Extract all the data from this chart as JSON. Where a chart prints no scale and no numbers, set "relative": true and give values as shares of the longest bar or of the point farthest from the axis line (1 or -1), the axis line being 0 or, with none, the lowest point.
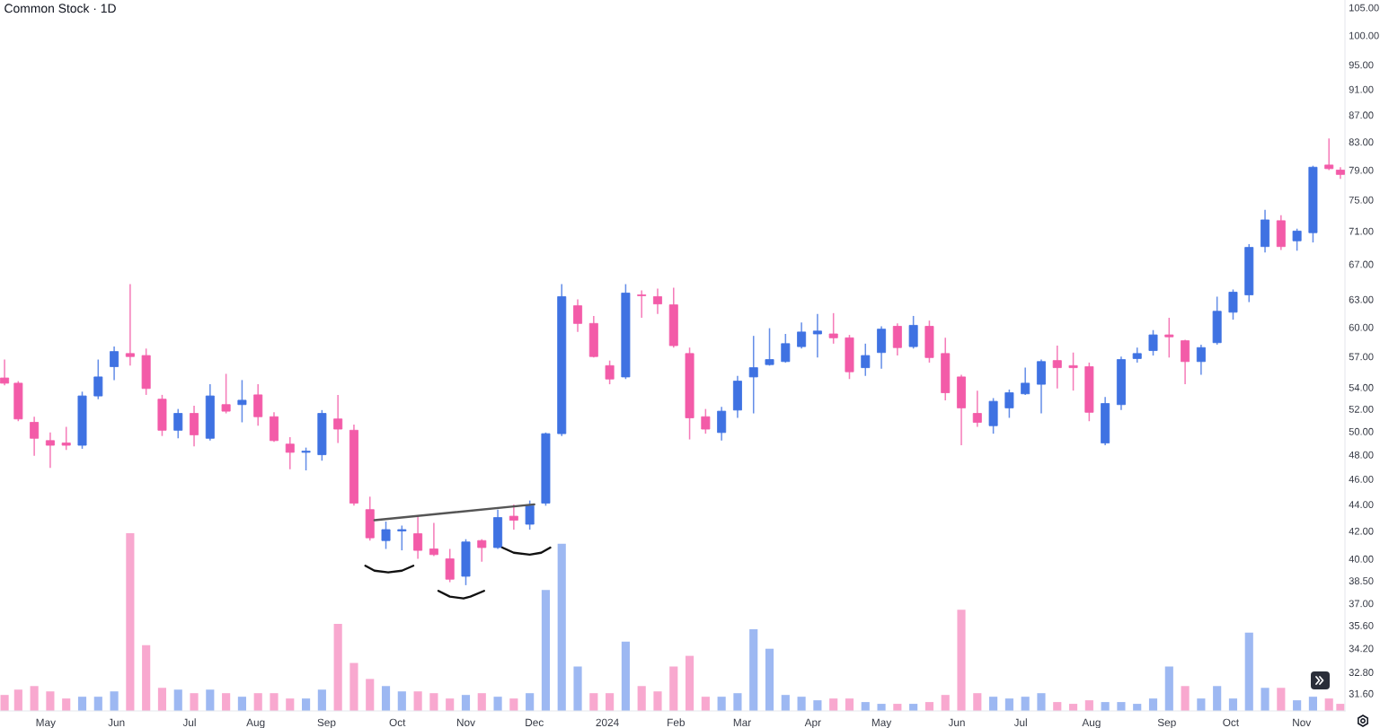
{
  "chart_data": [
    {
      "type": "candlestick",
      "title": "Common Stock · 1D",
      "log": true,
      "xlim": [
        "2023-04-11",
        "2024-11-20"
      ],
      "ylim": [
        30.65,
        106.4
      ],
      "yticks": [
        {
          "value": 31.6,
          "label": "31.60"
        },
        {
          "value": 32.8,
          "label": "32.80"
        },
        {
          "value": 34.2,
          "label": "34.20"
        },
        {
          "value": 35.6,
          "label": "35.60"
        },
        {
          "value": 37,
          "label": "37.00"
        },
        {
          "value": 38.5,
          "label": "38.50"
        },
        {
          "value": 40,
          "label": "40.00"
        },
        {
          "value": 42,
          "label": "42.00"
        },
        {
          "value": 44,
          "label": "44.00"
        },
        {
          "value": 46,
          "label": "46.00"
        },
        {
          "value": 48,
          "label": "48.00"
        },
        {
          "value": 50,
          "label": "50.00"
        },
        {
          "value": 52,
          "label": "52.00"
        },
        {
          "value": 54,
          "label": "54.00"
        },
        {
          "value": 57,
          "label": "57.00"
        },
        {
          "value": 60,
          "label": "60.00"
        },
        {
          "value": 63,
          "label": "63.00"
        },
        {
          "value": 67,
          "label": "67.00"
        },
        {
          "value": 71,
          "label": "71.00"
        },
        {
          "value": 75,
          "label": "75.00"
        },
        {
          "value": 79,
          "label": "79.00"
        },
        {
          "value": 83,
          "label": "83.00"
        },
        {
          "value": 87,
          "label": "87.00"
        },
        {
          "value": 91,
          "label": "91.00"
        },
        {
          "value": 95,
          "label": "95.00"
        },
        {
          "value": 100,
          "label": "100.00"
        },
        {
          "value": 105,
          "label": "105.00"
        }
      ],
      "x": [
        "2023-04-13",
        "2023-04-19",
        "2023-04-26",
        "2023-05-03",
        "2023-05-10",
        "2023-05-17",
        "2023-05-24",
        "2023-05-31",
        "2023-06-07",
        "2023-06-14",
        "2023-06-21",
        "2023-06-28",
        "2023-07-05",
        "2023-07-12",
        "2023-07-19",
        "2023-07-26",
        "2023-08-02",
        "2023-08-09",
        "2023-08-16",
        "2023-08-23",
        "2023-08-30",
        "2023-09-06",
        "2023-09-13",
        "2023-09-20",
        "2023-09-27",
        "2023-10-04",
        "2023-10-11",
        "2023-10-18",
        "2023-10-25",
        "2023-11-01",
        "2023-11-08",
        "2023-11-15",
        "2023-11-22",
        "2023-11-29",
        "2023-12-06",
        "2023-12-13",
        "2023-12-20",
        "2023-12-27",
        "2024-01-03",
        "2024-01-10",
        "2024-01-17",
        "2024-01-24",
        "2024-01-31",
        "2024-02-07",
        "2024-02-14",
        "2024-02-21",
        "2024-02-28",
        "2024-03-06",
        "2024-03-13",
        "2024-03-20",
        "2024-03-27",
        "2024-04-03",
        "2024-04-10",
        "2024-04-17",
        "2024-04-24",
        "2024-05-01",
        "2024-05-08",
        "2024-05-15",
        "2024-05-22",
        "2024-05-29",
        "2024-06-05",
        "2024-06-12",
        "2024-06-19",
        "2024-06-26",
        "2024-07-03",
        "2024-07-10",
        "2024-07-17",
        "2024-07-24",
        "2024-07-31",
        "2024-08-07",
        "2024-08-14",
        "2024-08-21",
        "2024-08-28",
        "2024-09-04",
        "2024-09-11",
        "2024-09-18",
        "2024-09-25",
        "2024-10-02",
        "2024-10-09",
        "2024-10-16",
        "2024-10-23",
        "2024-10-30",
        "2024-11-06",
        "2024-11-13",
        "2024-11-18"
      ],
      "ohlc": [
        [
          54.9,
          56.7,
          54.2,
          54.4
        ],
        [
          54.4,
          54.6,
          50.9,
          51.1
        ],
        [
          50.8,
          51.3,
          47.9,
          49.4
        ],
        [
          49.2,
          49.9,
          46.9,
          48.8
        ],
        [
          49.0,
          50.4,
          48.4,
          48.8
        ],
        [
          48.8,
          53.6,
          48.5,
          53.2
        ],
        [
          53.2,
          56.7,
          52.9,
          55.0
        ],
        [
          56.0,
          58.0,
          54.7,
          57.5
        ],
        [
          57.3,
          64.7,
          56.1,
          57.0
        ],
        [
          57.1,
          57.8,
          53.3,
          53.9
        ],
        [
          52.9,
          53.3,
          49.6,
          50.1
        ],
        [
          50.1,
          52.0,
          49.4,
          51.6
        ],
        [
          51.6,
          52.3,
          48.7,
          49.7
        ],
        [
          49.4,
          54.3,
          49.2,
          53.2
        ],
        [
          52.4,
          55.3,
          51.6,
          51.8
        ],
        [
          52.4,
          54.7,
          50.8,
          52.8
        ],
        [
          53.3,
          54.3,
          50.5,
          51.3
        ],
        [
          51.3,
          51.7,
          49.1,
          49.2
        ],
        [
          48.9,
          49.5,
          46.8,
          48.2
        ],
        [
          48.2,
          48.6,
          46.7,
          48.3
        ],
        [
          48.0,
          51.9,
          47.5,
          51.6
        ],
        [
          51.1,
          53.3,
          49.0,
          50.2
        ],
        [
          50.1,
          50.6,
          43.9,
          44.1
        ],
        [
          43.6,
          44.6,
          41.3,
          41.5
        ],
        [
          41.3,
          42.7,
          40.7,
          42.1
        ],
        [
          42.0,
          42.4,
          40.6,
          42.1
        ],
        [
          41.8,
          43.1,
          40.0,
          40.6
        ],
        [
          40.7,
          42.6,
          40.2,
          40.3
        ],
        [
          40.0,
          40.7,
          38.4,
          38.6
        ],
        [
          38.8,
          41.4,
          38.2,
          41.2
        ],
        [
          41.3,
          41.4,
          39.8,
          40.8
        ],
        [
          40.8,
          43.6,
          40.7,
          43.0
        ],
        [
          43.1,
          44.0,
          42.1,
          42.8
        ],
        [
          42.5,
          44.3,
          42.1,
          43.9
        ],
        [
          44.1,
          49.9,
          43.9,
          49.8
        ],
        [
          49.8,
          64.7,
          49.6,
          63.3
        ],
        [
          62.3,
          63.0,
          59.5,
          60.4
        ],
        [
          60.4,
          61.2,
          56.9,
          57.0
        ],
        [
          56.1,
          56.6,
          54.3,
          54.8
        ],
        [
          55.0,
          64.7,
          54.8,
          63.7
        ],
        [
          63.5,
          64.0,
          61.0,
          63.4
        ],
        [
          63.3,
          64.2,
          61.4,
          62.5
        ],
        [
          62.4,
          64.3,
          57.9,
          58.1
        ],
        [
          57.3,
          57.9,
          49.3,
          51.2
        ],
        [
          51.3,
          52.0,
          49.8,
          50.2
        ],
        [
          49.9,
          52.2,
          49.2,
          51.8
        ],
        [
          51.9,
          55.1,
          51.2,
          54.6
        ],
        [
          55.0,
          59.1,
          51.6,
          55.9
        ],
        [
          56.2,
          59.9,
          56.1,
          56.7
        ],
        [
          56.5,
          59.3,
          56.4,
          58.3
        ],
        [
          58.0,
          60.5,
          57.8,
          59.5
        ],
        [
          59.3,
          61.4,
          56.9,
          59.6
        ],
        [
          59.3,
          61.5,
          58.3,
          58.9
        ],
        [
          58.9,
          59.2,
          54.8,
          55.5
        ],
        [
          55.9,
          58.3,
          55.1,
          57.1
        ],
        [
          57.4,
          60.1,
          55.8,
          59.8
        ],
        [
          60.1,
          60.4,
          57.1,
          57.9
        ],
        [
          58.0,
          61.2,
          57.8,
          60.2
        ],
        [
          60.1,
          60.7,
          56.4,
          56.9
        ],
        [
          57.3,
          58.9,
          52.8,
          53.5
        ],
        [
          55.0,
          55.2,
          48.8,
          52.1
        ],
        [
          51.6,
          53.7,
          50.4,
          50.8
        ],
        [
          50.5,
          53.0,
          49.8,
          52.7
        ],
        [
          52.1,
          53.8,
          51.2,
          53.5
        ],
        [
          53.4,
          55.9,
          53.3,
          54.4
        ],
        [
          54.3,
          56.7,
          51.6,
          56.5
        ],
        [
          56.6,
          58.1,
          53.9,
          55.9
        ],
        [
          56.1,
          57.4,
          53.7,
          55.9
        ],
        [
          56.0,
          56.4,
          50.9,
          51.7
        ],
        [
          49.0,
          53.1,
          48.8,
          52.5
        ],
        [
          52.4,
          57.0,
          51.9,
          56.7
        ],
        [
          56.8,
          57.9,
          56.4,
          57.3
        ],
        [
          57.6,
          59.7,
          57.1,
          59.2
        ],
        [
          59.2,
          61.0,
          56.9,
          59.0
        ],
        [
          58.6,
          58.7,
          54.3,
          56.5
        ],
        [
          56.5,
          58.2,
          55.2,
          57.9
        ],
        [
          58.4,
          63.3,
          58.2,
          61.7
        ],
        [
          61.6,
          64.1,
          60.8,
          63.8
        ],
        [
          63.5,
          69.4,
          62.7,
          69.0
        ],
        [
          69.1,
          73.7,
          68.4,
          72.4
        ],
        [
          72.3,
          73.0,
          68.7,
          69.1
        ],
        [
          69.8,
          71.3,
          68.6,
          71.0
        ],
        [
          70.8,
          79.6,
          69.6,
          79.4
        ],
        [
          79.7,
          83.5,
          79.0,
          79.2
        ],
        [
          79.0,
          79.4,
          77.8,
          78.4
        ]
      ],
      "colors": [
        "#f35ba8",
        "#f35ba8",
        "#f35ba8",
        "#f35ba8",
        "#f35ba8",
        "#3f72e2",
        "#3f72e2",
        "#3f72e2",
        "#f35ba8",
        "#f35ba8",
        "#f35ba8",
        "#3f72e2",
        "#f35ba8",
        "#3f72e2",
        "#f35ba8",
        "#3f72e2",
        "#f35ba8",
        "#f35ba8",
        "#f35ba8",
        "#3f72e2",
        "#3f72e2",
        "#f35ba8",
        "#f35ba8",
        "#f35ba8",
        "#3f72e2",
        "#3f72e2",
        "#f35ba8",
        "#f35ba8",
        "#f35ba8",
        "#3f72e2",
        "#f35ba8",
        "#3f72e2",
        "#f35ba8",
        "#3f72e2",
        "#3f72e2",
        "#3f72e2",
        "#f35ba8",
        "#f35ba8",
        "#f35ba8",
        "#3f72e2",
        "#f35ba8",
        "#f35ba8",
        "#f35ba8",
        "#f35ba8",
        "#f35ba8",
        "#3f72e2",
        "#3f72e2",
        "#3f72e2",
        "#3f72e2",
        "#3f72e2",
        "#3f72e2",
        "#3f72e2",
        "#f35ba8",
        "#f35ba8",
        "#3f72e2",
        "#3f72e2",
        "#f35ba8",
        "#3f72e2",
        "#f35ba8",
        "#f35ba8",
        "#f35ba8",
        "#f35ba8",
        "#3f72e2",
        "#3f72e2",
        "#3f72e2",
        "#3f72e2",
        "#f35ba8",
        "#f35ba8",
        "#f35ba8",
        "#3f72e2",
        "#3f72e2",
        "#3f72e2",
        "#3f72e2",
        "#f35ba8",
        "#f35ba8",
        "#3f72e2",
        "#3f72e2",
        "#3f72e2",
        "#3f72e2",
        "#3f72e2",
        "#f35ba8",
        "#3f72e2",
        "#3f72e2",
        "#f35ba8",
        "#f35ba8"
      ],
      "series": [
        {
          "type": "line",
          "x": [
            "2023-09-22",
            "2023-12-01"
          ],
          "values": [
            42.8,
            44.0
          ],
          "color": "#555555"
        },
        {
          "type": "line",
          "x": [
            "2023-09-18",
            "2023-09-22",
            "2023-09-28",
            "2023-10-04",
            "2023-10-09"
          ],
          "values": [
            39.52,
            39.18,
            39.06,
            39.18,
            39.52
          ],
          "color": "#111111"
        },
        {
          "type": "line",
          "x": [
            "2023-10-20",
            "2023-10-25",
            "2023-10-31",
            "2023-11-03",
            "2023-11-09"
          ],
          "values": [
            37.82,
            37.44,
            37.32,
            37.44,
            37.82
          ],
          "color": "#111111"
        },
        {
          "type": "line",
          "x": [
            "2023-11-17",
            "2023-11-22",
            "2023-11-29",
            "2023-12-04",
            "2023-12-08"
          ],
          "values": [
            40.8,
            40.43,
            40.3,
            40.43,
            40.8
          ],
          "color": "#111111"
        }
      ]
    },
    {
      "type": "bar",
      "relative": true,
      "xlim": [
        "2023-04-11",
        "2024-11-20"
      ],
      "xticks": [
        {
          "value": "2023-05-01",
          "label": "May"
        },
        {
          "value": "2023-06-01",
          "label": "Jun"
        },
        {
          "value": "2023-07-03",
          "label": "Jul"
        },
        {
          "value": "2023-08-01",
          "label": "Aug"
        },
        {
          "value": "2023-09-01",
          "label": "Sep"
        },
        {
          "value": "2023-10-02",
          "label": "Oct"
        },
        {
          "value": "2023-11-01",
          "label": "Nov"
        },
        {
          "value": "2023-12-01",
          "label": "Dec"
        },
        {
          "value": "2024-01-02",
          "label": "2024"
        },
        {
          "value": "2024-02-01",
          "label": "Feb"
        },
        {
          "value": "2024-03-01",
          "label": "Mar"
        },
        {
          "value": "2024-04-01",
          "label": "Apr"
        },
        {
          "value": "2024-05-01",
          "label": "May"
        },
        {
          "value": "2024-06-03",
          "label": "Jun"
        },
        {
          "value": "2024-07-01",
          "label": "Jul"
        },
        {
          "value": "2024-08-01",
          "label": "Aug"
        },
        {
          "value": "2024-09-03",
          "label": "Sep"
        },
        {
          "value": "2024-10-01",
          "label": "Oct"
        },
        {
          "value": "2024-11-01",
          "label": "Nov"
        }
      ],
      "x": [
        "2023-04-13",
        "2023-04-19",
        "2023-04-26",
        "2023-05-03",
        "2023-05-10",
        "2023-05-17",
        "2023-05-24",
        "2023-05-31",
        "2023-06-07",
        "2023-06-14",
        "2023-06-21",
        "2023-06-28",
        "2023-07-05",
        "2023-07-12",
        "2023-07-19",
        "2023-07-26",
        "2023-08-02",
        "2023-08-09",
        "2023-08-16",
        "2023-08-23",
        "2023-08-30",
        "2023-09-06",
        "2023-09-13",
        "2023-09-20",
        "2023-09-27",
        "2023-10-04",
        "2023-10-11",
        "2023-10-18",
        "2023-10-25",
        "2023-11-01",
        "2023-11-08",
        "2023-11-15",
        "2023-11-22",
        "2023-11-29",
        "2023-12-06",
        "2023-12-13",
        "2023-12-20",
        "2023-12-27",
        "2024-01-03",
        "2024-01-10",
        "2024-01-17",
        "2024-01-24",
        "2024-01-31",
        "2024-02-07",
        "2024-02-14",
        "2024-02-21",
        "2024-02-28",
        "2024-03-06",
        "2024-03-13",
        "2024-03-20",
        "2024-03-27",
        "2024-04-03",
        "2024-04-10",
        "2024-04-17",
        "2024-04-24",
        "2024-05-01",
        "2024-05-08",
        "2024-05-15",
        "2024-05-22",
        "2024-05-29",
        "2024-06-05",
        "2024-06-12",
        "2024-06-19",
        "2024-06-26",
        "2024-07-03",
        "2024-07-10",
        "2024-07-17",
        "2024-07-24",
        "2024-07-31",
        "2024-08-07",
        "2024-08-14",
        "2024-08-21",
        "2024-08-28",
        "2024-09-04",
        "2024-09-11",
        "2024-09-18",
        "2024-09-25",
        "2024-10-02",
        "2024-10-09",
        "2024-10-16",
        "2024-10-23",
        "2024-10-30",
        "2024-11-06",
        "2024-11-13",
        "2024-11-18"
      ],
      "values": [
        0.09,
        0.12,
        0.14,
        0.11,
        0.07,
        0.08,
        0.08,
        0.11,
        1.0,
        0.37,
        0.13,
        0.12,
        0.1,
        0.12,
        0.1,
        0.08,
        0.1,
        0.1,
        0.07,
        0.07,
        0.12,
        0.49,
        0.27,
        0.18,
        0.14,
        0.11,
        0.11,
        0.1,
        0.07,
        0.09,
        0.1,
        0.08,
        0.07,
        0.1,
        0.68,
        0.94,
        0.25,
        0.1,
        0.1,
        0.39,
        0.14,
        0.11,
        0.25,
        0.31,
        0.08,
        0.08,
        0.1,
        0.46,
        0.35,
        0.09,
        0.08,
        0.06,
        0.07,
        0.07,
        0.05,
        0.04,
        0.04,
        0.04,
        0.05,
        0.09,
        0.57,
        0.1,
        0.08,
        0.07,
        0.08,
        0.1,
        0.05,
        0.04,
        0.06,
        0.05,
        0.05,
        0.04,
        0.07,
        0.25,
        0.14,
        0.07,
        0.14,
        0.07,
        0.44,
        0.13,
        0.13,
        0.06,
        0.08,
        0.07,
        0.04
      ],
      "colors": [
        "#f8a8cf",
        "#f8a8cf",
        "#f8a8cf",
        "#f8a8cf",
        "#f8a8cf",
        "#9db8f2",
        "#9db8f2",
        "#9db8f2",
        "#f8a8cf",
        "#f8a8cf",
        "#f8a8cf",
        "#9db8f2",
        "#f8a8cf",
        "#9db8f2",
        "#f8a8cf",
        "#9db8f2",
        "#f8a8cf",
        "#f8a8cf",
        "#f8a8cf",
        "#9db8f2",
        "#9db8f2",
        "#f8a8cf",
        "#f8a8cf",
        "#f8a8cf",
        "#9db8f2",
        "#9db8f2",
        "#f8a8cf",
        "#f8a8cf",
        "#f8a8cf",
        "#9db8f2",
        "#f8a8cf",
        "#9db8f2",
        "#f8a8cf",
        "#9db8f2",
        "#9db8f2",
        "#9db8f2",
        "#9db8f2",
        "#f8a8cf",
        "#f8a8cf",
        "#9db8f2",
        "#f8a8cf",
        "#f8a8cf",
        "#f8a8cf",
        "#f8a8cf",
        "#f8a8cf",
        "#9db8f2",
        "#9db8f2",
        "#9db8f2",
        "#9db8f2",
        "#9db8f2",
        "#9db8f2",
        "#9db8f2",
        "#f8a8cf",
        "#f8a8cf",
        "#9db8f2",
        "#9db8f2",
        "#f8a8cf",
        "#9db8f2",
        "#f8a8cf",
        "#f8a8cf",
        "#f8a8cf",
        "#f8a8cf",
        "#9db8f2",
        "#9db8f2",
        "#9db8f2",
        "#9db8f2",
        "#f8a8cf",
        "#f8a8cf",
        "#f8a8cf",
        "#9db8f2",
        "#9db8f2",
        "#9db8f2",
        "#9db8f2",
        "#9db8f2",
        "#f8a8cf",
        "#9db8f2",
        "#9db8f2",
        "#9db8f2",
        "#9db8f2",
        "#9db8f2",
        "#f8a8cf",
        "#9db8f2",
        "#9db8f2",
        "#f8a8cf",
        "#f8a8cf"
      ]
    }
  ]
}
